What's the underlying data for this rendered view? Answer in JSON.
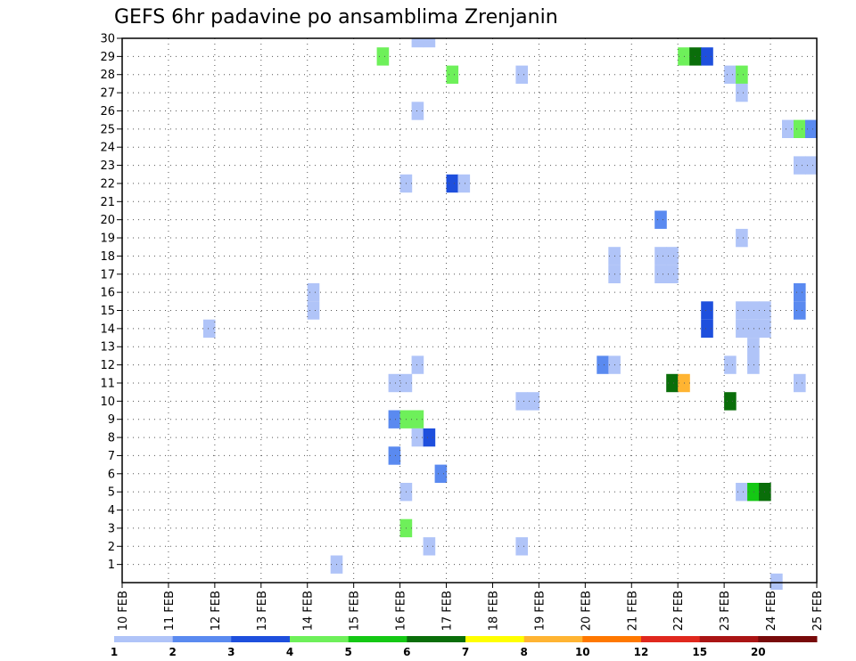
{
  "chart_data": {
    "type": "heatmap",
    "title": "GEFS 6hr padavine po ansamblima Zrenjanin",
    "xlabel": "",
    "ylabel": "",
    "x_ticks": [
      "10 FEB",
      "11 FEB",
      "12 FEB",
      "13 FEB",
      "14 FEB",
      "15 FEB",
      "16 FEB",
      "17 FEB",
      "18 FEB",
      "19 FEB",
      "20 FEB",
      "21 FEB",
      "22 FEB",
      "23 FEB",
      "24 FEB",
      "25 FEB"
    ],
    "xlim_days": [
      10,
      25
    ],
    "ylim": [
      0,
      30
    ],
    "y_ticks": [
      1,
      2,
      3,
      4,
      5,
      6,
      7,
      8,
      9,
      10,
      11,
      12,
      13,
      14,
      15,
      16,
      17,
      18,
      19,
      20,
      21,
      22,
      23,
      24,
      25,
      26,
      27,
      28,
      29,
      30
    ],
    "grid": true,
    "legend_position": "bottom",
    "colorbar": {
      "colors": [
        "#b0c4f8",
        "#5a8af0",
        "#1e4fdd",
        "#6ef05a",
        "#14c814",
        "#0a6e0a",
        "#ffff00",
        "#ffb432",
        "#ff7800",
        "#e0281e",
        "#aa1414",
        "#780a0a"
      ],
      "labels": [
        "1",
        "2",
        "3",
        "4",
        "5",
        "6",
        "7",
        "8",
        "10",
        "12",
        "15",
        "20"
      ]
    },
    "cells": [
      {
        "member": 30,
        "time": 16.25,
        "level": 1
      },
      {
        "member": 30,
        "time": 16.5,
        "level": 1
      },
      {
        "member": 29,
        "time": 15.5,
        "level": 4
      },
      {
        "member": 29,
        "time": 22.0,
        "level": 4
      },
      {
        "member": 29,
        "time": 22.25,
        "level": 6
      },
      {
        "member": 29,
        "time": 22.5,
        "level": 3
      },
      {
        "member": 28,
        "time": 17.0,
        "level": 4
      },
      {
        "member": 28,
        "time": 18.5,
        "level": 1
      },
      {
        "member": 28,
        "time": 23.0,
        "level": 1
      },
      {
        "member": 28,
        "time": 23.25,
        "level": 4
      },
      {
        "member": 27,
        "time": 23.25,
        "level": 1
      },
      {
        "member": 26,
        "time": 16.25,
        "level": 1
      },
      {
        "member": 25,
        "time": 24.25,
        "level": 1
      },
      {
        "member": 25,
        "time": 24.5,
        "level": 4
      },
      {
        "member": 25,
        "time": 24.75,
        "level": 2
      },
      {
        "member": 23,
        "time": 24.5,
        "level": 1
      },
      {
        "member": 23,
        "time": 24.75,
        "level": 1
      },
      {
        "member": 22,
        "time": 16.0,
        "level": 1
      },
      {
        "member": 22,
        "time": 17.0,
        "level": 3
      },
      {
        "member": 22,
        "time": 17.25,
        "level": 1
      },
      {
        "member": 20,
        "time": 21.5,
        "level": 2
      },
      {
        "member": 19,
        "time": 23.25,
        "level": 1
      },
      {
        "member": 18,
        "time": 20.5,
        "level": 1
      },
      {
        "member": 18,
        "time": 21.5,
        "level": 1
      },
      {
        "member": 18,
        "time": 21.75,
        "level": 1
      },
      {
        "member": 17,
        "time": 20.5,
        "level": 1
      },
      {
        "member": 17,
        "time": 21.5,
        "level": 1
      },
      {
        "member": 17,
        "time": 21.75,
        "level": 1
      },
      {
        "member": 16,
        "time": 14.0,
        "level": 1
      },
      {
        "member": 16,
        "time": 24.5,
        "level": 2
      },
      {
        "member": 15,
        "time": 14.0,
        "level": 1
      },
      {
        "member": 15,
        "time": 24.5,
        "level": 2
      },
      {
        "member": 15,
        "time": 22.5,
        "level": 3
      },
      {
        "member": 15,
        "time": 23.25,
        "level": 1
      },
      {
        "member": 15,
        "time": 23.5,
        "level": 1
      },
      {
        "member": 15,
        "time": 23.75,
        "level": 1
      },
      {
        "member": 14,
        "time": 11.75,
        "level": 1
      },
      {
        "member": 14,
        "time": 22.5,
        "level": 3
      },
      {
        "member": 14,
        "time": 23.25,
        "level": 1
      },
      {
        "member": 14,
        "time": 23.5,
        "level": 1
      },
      {
        "member": 14,
        "time": 23.75,
        "level": 1
      },
      {
        "member": 13,
        "time": 23.5,
        "level": 1
      },
      {
        "member": 12,
        "time": 16.25,
        "level": 1
      },
      {
        "member": 12,
        "time": 20.25,
        "level": 2
      },
      {
        "member": 12,
        "time": 20.5,
        "level": 1
      },
      {
        "member": 12,
        "time": 23.0,
        "level": 1
      },
      {
        "member": 12,
        "time": 23.5,
        "level": 1
      },
      {
        "member": 11,
        "time": 15.75,
        "level": 1
      },
      {
        "member": 11,
        "time": 16.0,
        "level": 1
      },
      {
        "member": 11,
        "time": 21.75,
        "level": 6
      },
      {
        "member": 11,
        "time": 22.0,
        "level": 8
      },
      {
        "member": 11,
        "time": 24.5,
        "level": 1
      },
      {
        "member": 10,
        "time": 18.5,
        "level": 1
      },
      {
        "member": 10,
        "time": 18.75,
        "level": 1
      },
      {
        "member": 10,
        "time": 23.0,
        "level": 6
      },
      {
        "member": 9,
        "time": 15.75,
        "level": 2
      },
      {
        "member": 9,
        "time": 16.0,
        "level": 4
      },
      {
        "member": 9,
        "time": 16.25,
        "level": 4
      },
      {
        "member": 8,
        "time": 16.25,
        "level": 1
      },
      {
        "member": 8,
        "time": 16.5,
        "level": 3
      },
      {
        "member": 7,
        "time": 15.75,
        "level": 2
      },
      {
        "member": 6,
        "time": 16.75,
        "level": 2
      },
      {
        "member": 5,
        "time": 16.0,
        "level": 1
      },
      {
        "member": 5,
        "time": 23.25,
        "level": 1
      },
      {
        "member": 5,
        "time": 23.5,
        "level": 5
      },
      {
        "member": 5,
        "time": 23.75,
        "level": 6
      },
      {
        "member": 3,
        "time": 16.0,
        "level": 4
      },
      {
        "member": 2,
        "time": 16.5,
        "level": 1
      },
      {
        "member": 2,
        "time": 18.5,
        "level": 1
      },
      {
        "member": 1,
        "time": 14.5,
        "level": 1
      },
      {
        "member": 0,
        "time": 24.0,
        "level": 1
      }
    ]
  }
}
